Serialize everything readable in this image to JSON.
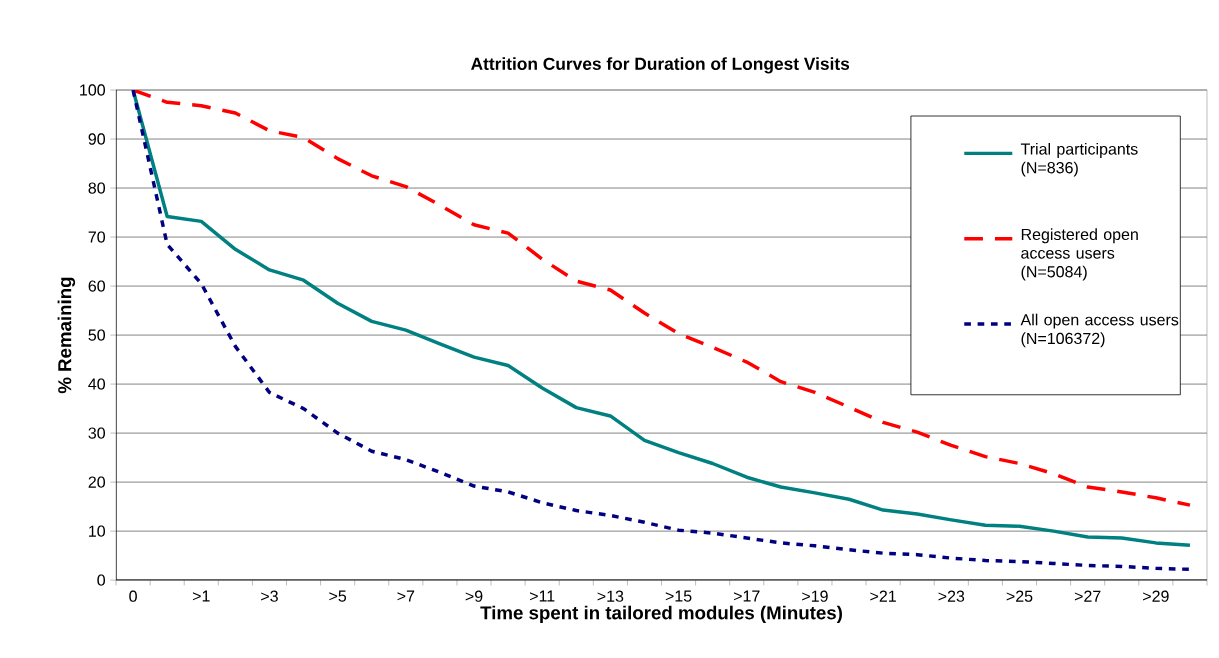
{
  "chart_data": {
    "type": "line",
    "title": "Attrition Curves for Duration of Longest Visits",
    "xlabel": "Time spent in tailored modules (Minutes)",
    "ylabel": "% Remaining",
    "categories": [
      "0",
      null,
      ">1",
      null,
      ">3",
      null,
      ">5",
      null,
      ">7",
      null,
      ">9",
      null,
      ">11",
      null,
      ">13",
      null,
      ">15",
      null,
      ">17",
      null,
      ">19",
      null,
      ">21",
      null,
      ">23",
      null,
      ">25",
      null,
      ">27",
      null,
      ">29",
      null
    ],
    "series": [
      {
        "name": "Trial participants (N=836)",
        "color": "#008080",
        "line_style": "solid",
        "values": [
          100,
          74.2,
          73.2,
          67.5,
          63.3,
          61.2,
          56.5,
          52.8,
          51.0,
          48.2,
          45.5,
          43.8,
          39.2,
          35.2,
          33.5,
          28.5,
          26,
          23.8,
          21,
          19,
          17.8,
          16.5,
          14.3,
          13.5,
          12.3,
          11.2,
          11,
          10,
          8.8,
          8.6,
          7.6,
          7.1
        ]
      },
      {
        "name": "Registered open access users (N=5084)",
        "color": "#ff0000",
        "line_style": "dashed",
        "values": [
          100,
          97.5,
          96.8,
          95.3,
          91.7,
          90.3,
          86.0,
          82.5,
          80.3,
          76.5,
          72.5,
          70.8,
          65.5,
          61.0,
          59.2,
          54.5,
          50.3,
          47.5,
          44.5,
          40.5,
          38.3,
          35.3,
          32.2,
          30.2,
          27.5,
          25.2,
          23.8,
          21.7,
          19,
          18,
          16.8,
          15.3
        ]
      },
      {
        "name": "All open access users (N=106372)",
        "color": "#000080",
        "line_style": "dotted",
        "values": [
          100,
          68.5,
          60.5,
          47.7,
          38.3,
          35,
          30,
          26.3,
          24.6,
          22,
          19.2,
          18,
          15.8,
          14.2,
          13.2,
          11.8,
          10.2,
          9.6,
          8.6,
          7.6,
          7.0,
          6.2,
          5.5,
          5.2,
          4.5,
          4.0,
          3.8,
          3.4,
          3.0,
          2.8,
          2.4,
          2.2
        ]
      }
    ],
    "ylim": [
      0,
      100
    ],
    "yticks": [
      0,
      10,
      20,
      30,
      40,
      50,
      60,
      70,
      80,
      90,
      100
    ],
    "grid": "y",
    "legend": "top right",
    "marker": "none"
  }
}
